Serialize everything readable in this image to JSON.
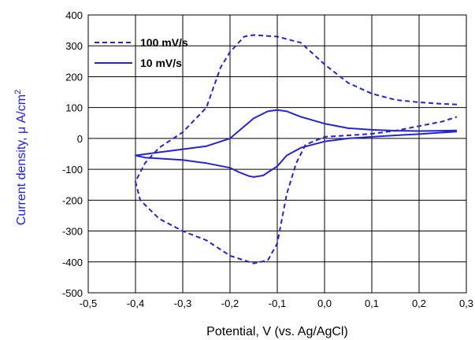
{
  "chart_data": {
    "type": "line",
    "title": "",
    "xlabel": "Potential, V (vs. Ag/AgCl)",
    "ylabel_prefix": "Current density, μ A/cm",
    "ylabel_sup": "2",
    "xlim": [
      -0.5,
      0.3
    ],
    "ylim": [
      -500,
      400
    ],
    "x_ticks": [
      -0.5,
      -0.4,
      -0.3,
      -0.2,
      -0.1,
      0.0,
      0.1,
      0.2,
      0.3
    ],
    "x_tick_labels": [
      "-0,5",
      "-0,4",
      "-0,3",
      "-0,2",
      "-0,1",
      "0,0",
      "0,1",
      "0,2",
      "0,3"
    ],
    "y_ticks": [
      -500,
      -400,
      -300,
      -200,
      -100,
      0,
      100,
      200,
      300,
      400
    ],
    "y_tick_labels": [
      "-500",
      "-400",
      "-300",
      "-200",
      "-100",
      "0",
      "100",
      "200",
      "300",
      "400"
    ],
    "grid": true,
    "legend_position": "top-left",
    "colors": {
      "series": "#2323dc",
      "axis_label": "#1a1aff",
      "grid": "#000000"
    },
    "series": [
      {
        "name": "100 mV/s",
        "style": "dashed",
        "x": [
          0.28,
          0.25,
          0.2,
          0.15,
          0.1,
          0.05,
          0.0,
          -0.05,
          -0.1,
          -0.15,
          -0.17,
          -0.2,
          -0.22,
          -0.25,
          -0.3,
          -0.35,
          -0.38,
          -0.4,
          -0.39,
          -0.35,
          -0.3,
          -0.25,
          -0.2,
          -0.15,
          -0.12,
          -0.1,
          -0.08,
          -0.06,
          -0.04,
          0.0,
          0.05,
          0.1,
          0.15,
          0.2,
          0.25,
          0.28
        ],
        "y": [
          110,
          112,
          117,
          125,
          145,
          180,
          240,
          310,
          330,
          335,
          330,
          280,
          230,
          100,
          20,
          -30,
          -80,
          -140,
          -200,
          -260,
          -300,
          -330,
          -380,
          -405,
          -395,
          -340,
          -180,
          -80,
          -20,
          5,
          10,
          15,
          25,
          40,
          55,
          70
        ]
      },
      {
        "name": "10 mV/s",
        "style": "solid",
        "x": [
          0.28,
          0.25,
          0.2,
          0.15,
          0.1,
          0.05,
          0.0,
          -0.05,
          -0.08,
          -0.1,
          -0.12,
          -0.15,
          -0.2,
          -0.25,
          -0.3,
          -0.35,
          -0.4,
          -0.38,
          -0.35,
          -0.3,
          -0.25,
          -0.2,
          -0.18,
          -0.16,
          -0.15,
          -0.13,
          -0.1,
          -0.08,
          -0.05,
          0.0,
          0.05,
          0.1,
          0.15,
          0.2,
          0.25,
          0.28
        ],
        "y": [
          26,
          25,
          24,
          25,
          28,
          33,
          48,
          70,
          88,
          92,
          88,
          65,
          0,
          -25,
          -35,
          -45,
          -55,
          -62,
          -65,
          -70,
          -80,
          -95,
          -110,
          -122,
          -125,
          -120,
          -90,
          -55,
          -30,
          -10,
          0,
          5,
          10,
          14,
          19,
          22
        ]
      }
    ]
  }
}
